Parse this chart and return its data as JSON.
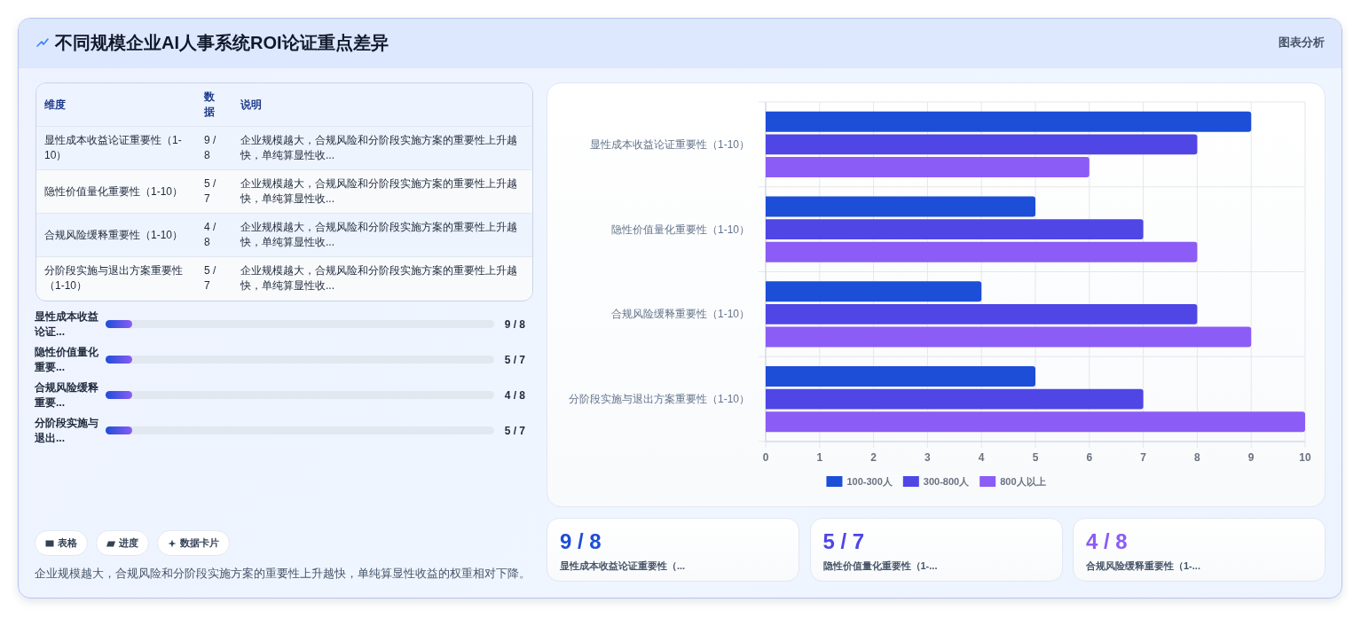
{
  "chart_data": [
    {
      "type": "other",
      "title": "不同规模企业AI人事系统ROI论证重点差异",
      "annotations": [
        "维度",
        "数据",
        "说明",
        "显性成本收益论证重要性（1-10）",
        "9 / 8",
        "企业规模越大，合规风险和分阶段实施方案的重要性上升越快，单纯算显性收...",
        "隐性价值量化重要性（1-10）",
        "5 / 7",
        "企业规模越大，合规风险和分阶段实施方案的重要性上升越快，单纯算显性收...",
        "合规风险缓释重要性（1-10）",
        "4 / 8",
        "企业规模越大，合规风险和分阶段实施方案的重要性上升越快，单纯算显性收...",
        "分阶段实施与退出方案重要性（1-10）",
        "5 / 7",
        "企业规模越大，合规风险和分阶段实施方案的重要性上升越快，单纯算显性收..."
      ]
    },
    {
      "type": "bar",
      "orientation": "horizontal",
      "categories": [
        "显性成本收益论证重要性（1-10）",
        "隐性价值量化重要性（1-10）",
        "合规风险缓释重要性（1-10）",
        "分阶段实施与退出方案重要性（1-10）"
      ],
      "series": [
        {
          "name": "100-300人",
          "color": "#1d4ed8",
          "values": [
            9,
            5,
            4,
            5
          ]
        },
        {
          "name": "300-800人",
          "color": "#4f46e5",
          "values": [
            8,
            7,
            8,
            7
          ]
        },
        {
          "name": "800人以上",
          "color": "#8b5cf6",
          "values": [
            6,
            8,
            9,
            10
          ]
        }
      ],
      "xlim": [
        0,
        10
      ],
      "xticks": [
        0,
        1,
        2,
        3,
        4,
        5,
        6,
        7,
        8,
        9,
        10
      ],
      "grid": true,
      "legend": "bottom",
      "annotations": [
        "图表分析"
      ]
    },
    {
      "type": "other",
      "categories": [
        "显性成本收益论证...",
        "隐性价值量化重要...",
        "合规风险缓释重要...",
        "分阶段实施与退出..."
      ],
      "value_labels": [
        "9 / 8",
        "5 / 7",
        "4 / 8",
        "5 / 7"
      ],
      "annotations": [
        "表格",
        "进度",
        "数据卡片",
        "企业规模越大，合规风险和分阶段实施方案的重要性上升越快，单纯算显性收益的权重相对下降。"
      ]
    },
    {
      "type": "other",
      "annotations": [
        "9 / 8",
        "显性成本收益论证重要性（...",
        "5 / 7",
        "隐性价值量化重要性（1-...",
        "4 / 8",
        "合规风险缓释重要性（1-..."
      ],
      "colors": [
        "#1d4ed8",
        "#4f46e5",
        "#8b5cf6"
      ]
    }
  ]
}
